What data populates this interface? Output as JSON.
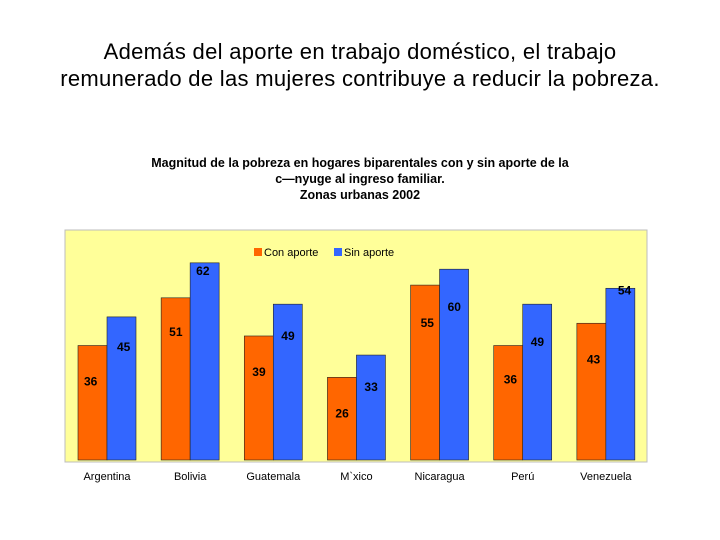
{
  "slide": {
    "title": "Además del aporte en trabajo doméstico, el trabajo remunerado de las mujeres contribuye a reducir la pobreza."
  },
  "chart_data": {
    "type": "bar",
    "title_lines": [
      "Magnitud de la pobreza en hogares biparentales con y sin aporte de la",
      "c—nyuge al ingreso familiar.",
      "Zonas urbanas 2002"
    ],
    "categories": [
      "Argentina",
      "Bolivia",
      "Guatemala",
      "M`xico",
      "Nicaragua",
      "Perú",
      "Venezuela"
    ],
    "series": [
      {
        "name": "Con aporte",
        "color": "#FF6600",
        "values": [
          36,
          51,
          39,
          26,
          55,
          36,
          43
        ]
      },
      {
        "name": "Sin aporte",
        "color": "#3366FF",
        "values": [
          45,
          62,
          49,
          33,
          60,
          49,
          54
        ]
      }
    ],
    "ylim": [
      0,
      70
    ],
    "legend": "top-center",
    "plot_background": "#FFFF99",
    "grid": false
  }
}
